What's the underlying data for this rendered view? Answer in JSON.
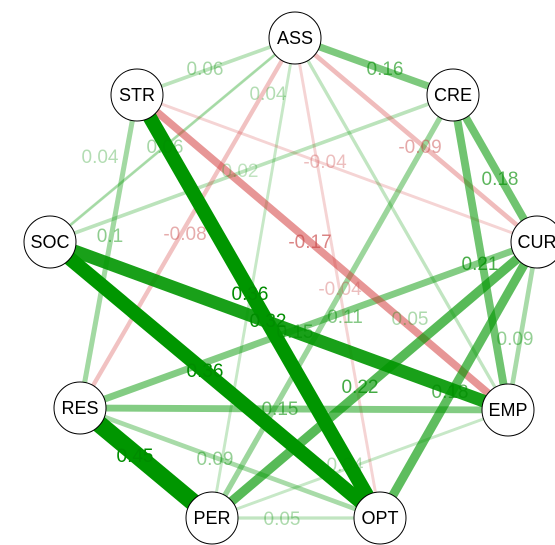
{
  "nodes": [
    {
      "label": "ASS"
    },
    {
      "label": "CRE"
    },
    {
      "label": "CUR"
    },
    {
      "label": "EMP"
    },
    {
      "label": "OPT"
    },
    {
      "label": "PER"
    },
    {
      "label": "RES"
    },
    {
      "label": "SOC"
    },
    {
      "label": "STR"
    }
  ],
  "edges": [
    {
      "from": "STR",
      "to": "ASS",
      "weight": 0.06
    },
    {
      "from": "ASS",
      "to": "CRE",
      "weight": 0.16
    },
    {
      "from": "CRE",
      "to": "CUR",
      "weight": 0.18
    },
    {
      "from": "ASS",
      "to": "PER",
      "weight": 0.04
    },
    {
      "from": "SOC",
      "to": "ASS",
      "weight": 0.04
    },
    {
      "from": "SOC",
      "to": "CRE",
      "weight": 0.06
    },
    {
      "from": "STR",
      "to": "RES",
      "weight": 0.1
    },
    {
      "from": "ASS",
      "to": "RES",
      "weight": -0.08
    },
    {
      "from": "ASS",
      "to": "SOC",
      "weight": 0.02
    },
    {
      "from": "STR",
      "to": "EMP",
      "weight": -0.17
    },
    {
      "from": "ASS",
      "to": "CUR",
      "weight": -0.09
    },
    {
      "from": "STR",
      "to": "CUR",
      "weight": -0.04
    },
    {
      "from": "STR",
      "to": "OPT",
      "weight": 0.36
    },
    {
      "from": "SOC",
      "to": "EMP",
      "weight": 0.32
    },
    {
      "from": "SOC",
      "to": "OPT",
      "weight": 0.36
    },
    {
      "from": "RES",
      "to": "CUR",
      "weight": 0.15
    },
    {
      "from": "PER",
      "to": "CRE",
      "weight": 0.11
    },
    {
      "from": "ASS",
      "to": "OPT",
      "weight": -0.04
    },
    {
      "from": "CUR",
      "to": "OPT",
      "weight": 0.21
    },
    {
      "from": "ASS",
      "to": "EMP",
      "weight": 0.05
    },
    {
      "from": "CUR",
      "to": "EMP",
      "weight": 0.09
    },
    {
      "from": "PER",
      "to": "CUR",
      "weight": 0.22
    },
    {
      "from": "CRE",
      "to": "EMP",
      "weight": 0.18
    },
    {
      "from": "RES",
      "to": "EMP",
      "weight": 0.15
    },
    {
      "from": "RES",
      "to": "PER",
      "weight": 0.45
    },
    {
      "from": "RES",
      "to": "OPT",
      "weight": 0.09
    },
    {
      "from": "PER",
      "to": "OPT",
      "weight": 0.05
    },
    {
      "from": "PER",
      "to": "EMP",
      "weight": 0.04
    }
  ]
}
